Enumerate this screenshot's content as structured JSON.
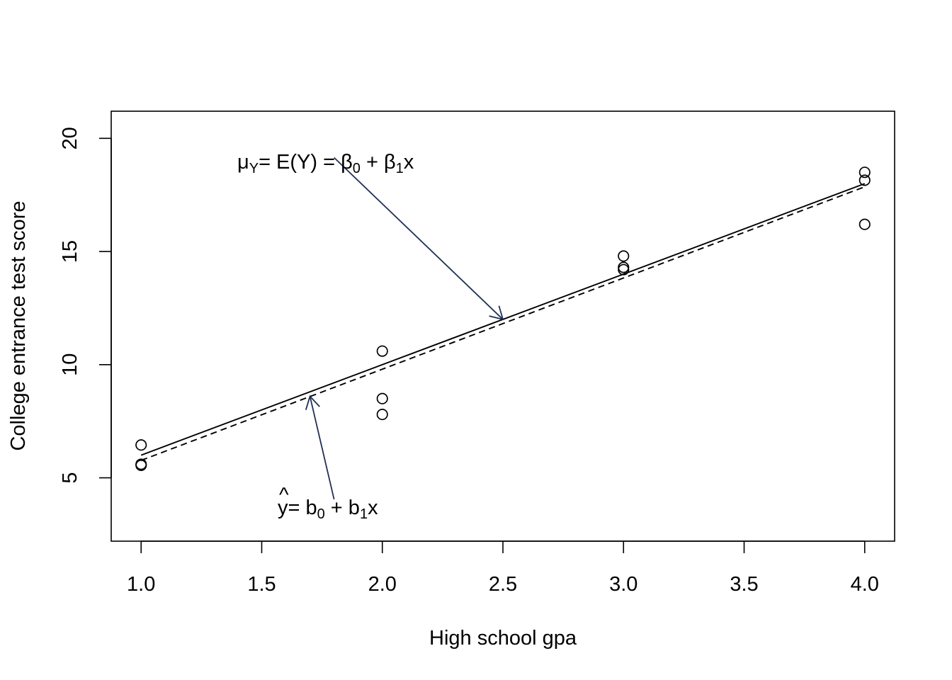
{
  "chart_data": {
    "type": "scatter",
    "title": "",
    "xlabel": "High school gpa",
    "ylabel": "College entrance test score",
    "xlim": [
      0.876,
      4.124
    ],
    "ylim": [
      2.2,
      21.2
    ],
    "x_ticks": [
      1.0,
      1.5,
      2.0,
      2.5,
      3.0,
      3.5,
      4.0
    ],
    "x_tick_labels": [
      "1.0",
      "1.5",
      "2.0",
      "2.5",
      "3.0",
      "3.5",
      "4.0"
    ],
    "y_ticks": [
      5,
      10,
      15,
      20
    ],
    "y_tick_labels": [
      "5",
      "10",
      "15",
      "20"
    ],
    "grid": false,
    "points": {
      "x": [
        1,
        1,
        1,
        2,
        2,
        2,
        3,
        3,
        3,
        4,
        4,
        4
      ],
      "y": [
        6.45,
        5.6,
        5.55,
        10.6,
        8.5,
        7.8,
        14.8,
        14.3,
        14.2,
        18.5,
        18.15,
        16.2
      ]
    },
    "lines": [
      {
        "style": "solid",
        "intercept": 2,
        "slope": 4
      },
      {
        "style": "dashed",
        "intercept": 1.74,
        "slope": 4.03
      }
    ],
    "annotations": [
      {
        "id": "population",
        "parts": [
          "μ",
          "Y",
          "= E(Y) = ",
          "β",
          "0",
          " + ",
          "β",
          "1",
          "x"
        ],
        "arrow_tail": [
          1.8,
          19.15
        ],
        "arrow_head": [
          2.5,
          12.0
        ],
        "color": "#1f3055"
      },
      {
        "id": "sample",
        "parts": [
          "^",
          "y",
          "= b",
          "0",
          " + b",
          "1",
          "x"
        ],
        "arrow_tail": [
          1.8,
          4.05
        ],
        "arrow_head": [
          1.7,
          8.6
        ],
        "color": "#1f3055"
      }
    ]
  }
}
